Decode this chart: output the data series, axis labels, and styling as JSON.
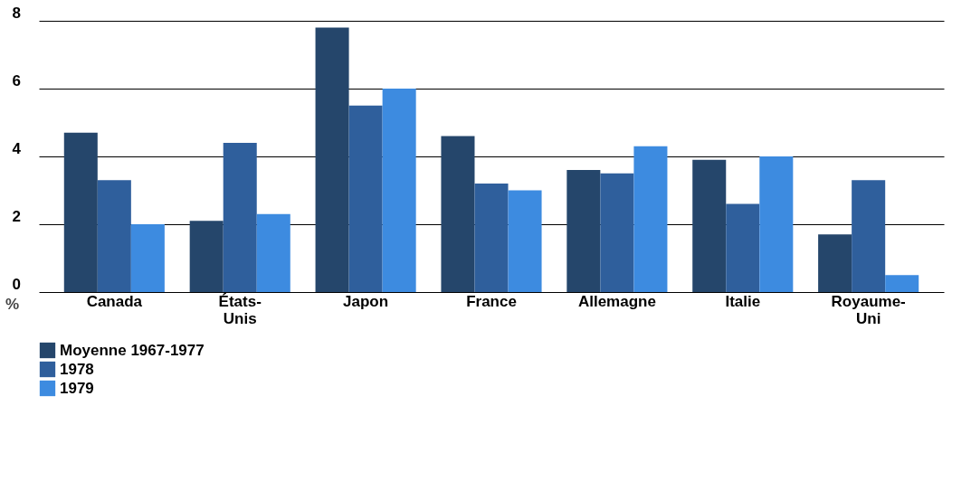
{
  "chart_data": {
    "type": "bar",
    "ylabel": "%",
    "categories": [
      "Canada",
      "États-Unis",
      "Japon",
      "France",
      "Allemagne",
      "Italie",
      "Royaume-Uni"
    ],
    "series": [
      {
        "name": "Moyenne 1967-1977",
        "color": "#25466b",
        "values": [
          4.7,
          2.1,
          7.8,
          4.6,
          3.6,
          3.9,
          1.7
        ]
      },
      {
        "name": "1978",
        "color": "#2f5f9c",
        "values": [
          3.3,
          4.4,
          5.5,
          3.2,
          3.5,
          2.6,
          3.3
        ]
      },
      {
        "name": "1979",
        "color": "#3d8be0",
        "values": [
          2.0,
          2.3,
          6.0,
          3.0,
          4.3,
          4.0,
          0.5
        ]
      }
    ],
    "ylim": [
      0,
      8
    ],
    "yticks": [
      0,
      2,
      4,
      6,
      8
    ],
    "grid": "y",
    "legend": "bottom left"
  }
}
